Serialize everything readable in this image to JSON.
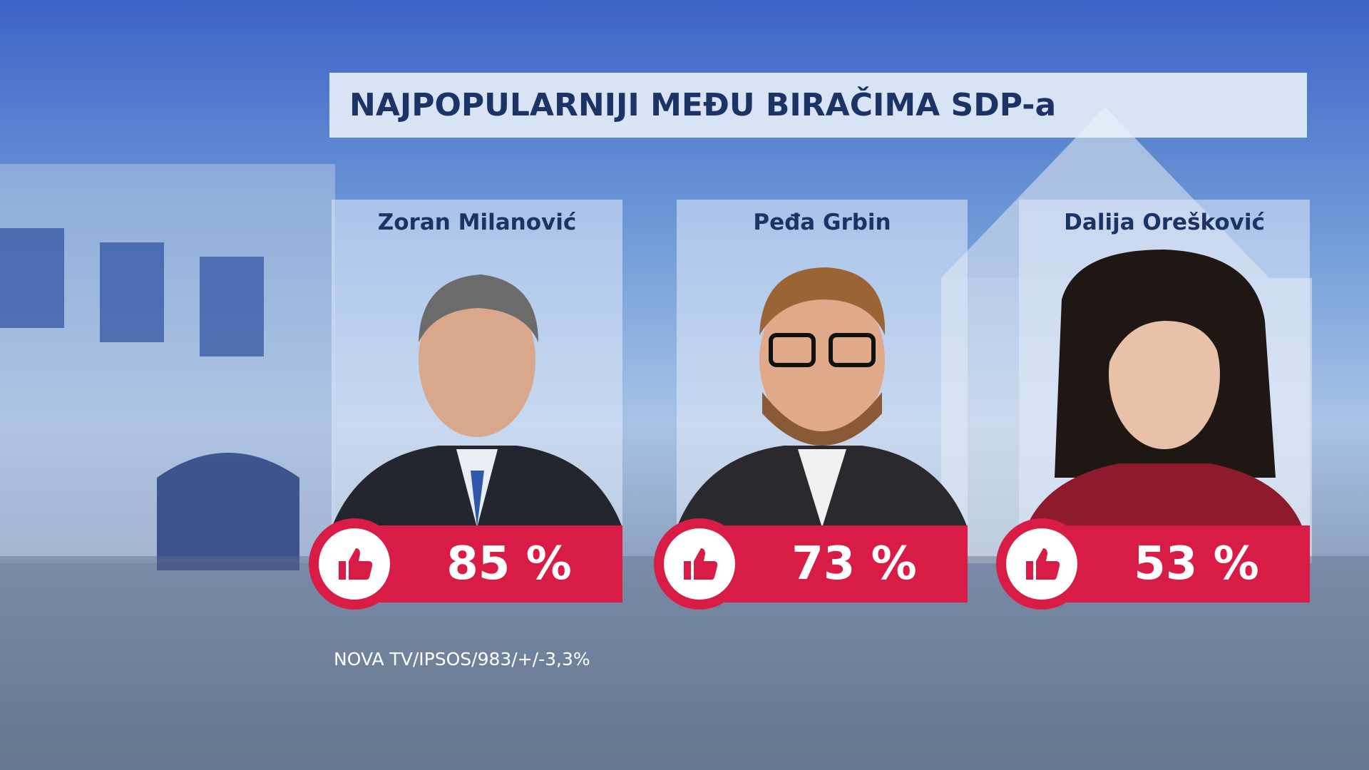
{
  "header": {
    "title": "NAJPOPULARNIJI MEĐU BIRAČIMA SDP-a"
  },
  "cards": [
    {
      "name": "Zoran Milanović",
      "value": "85 %"
    },
    {
      "name": "Peđa Grbin",
      "value": "73 %"
    },
    {
      "name": "Dalija Orešković",
      "value": "53 %"
    }
  ],
  "source": "NOVA TV/IPSOS/983/+/-3,3%"
}
